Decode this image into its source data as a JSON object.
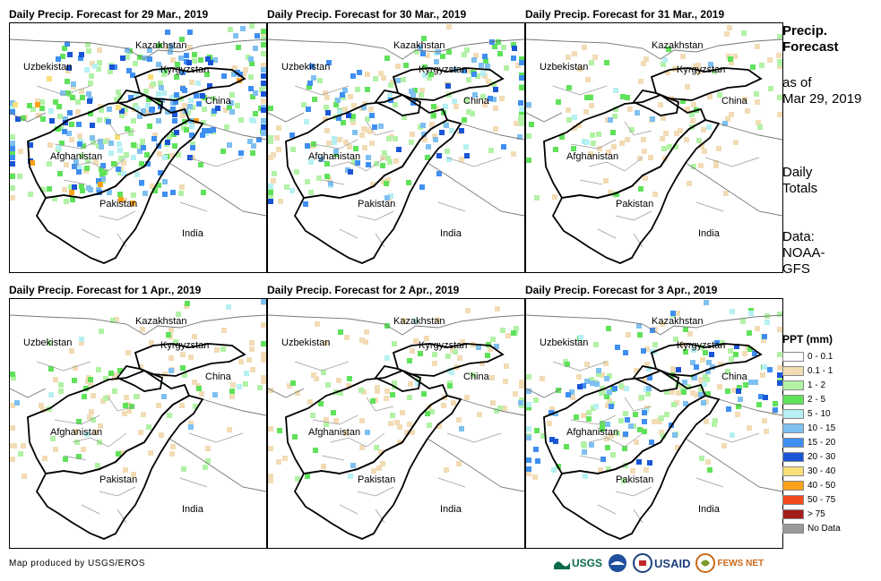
{
  "panels": [
    {
      "title": "Daily Precip. Forecast for 29 Mar., 2019",
      "precip_level": "heavy"
    },
    {
      "title": "Daily Precip. Forecast for 30 Mar., 2019",
      "precip_level": "moderate"
    },
    {
      "title": "Daily Precip. Forecast for 31 Mar., 2019",
      "precip_level": "light"
    },
    {
      "title": "Daily Precip. Forecast for 1 Apr., 2019",
      "precip_level": "light"
    },
    {
      "title": "Daily Precip. Forecast for 2 Apr., 2019",
      "precip_level": "light"
    },
    {
      "title": "Daily Precip. Forecast for 3 Apr., 2019",
      "precip_level": "moderate"
    }
  ],
  "map_labels": {
    "kazakhstan": "Kazakhstan",
    "uzbekistan": "Uzbekistan",
    "kyrgyzstan": "Kyrgyzstan",
    "china": "China",
    "afghanistan": "Afghanistan",
    "pakistan": "Pakistan",
    "india": "India"
  },
  "sidebar": {
    "title_line1": "Precip.",
    "title_line2": "Forecast",
    "asof_line1": "as of",
    "asof_line2": "Mar 29, 2019",
    "daily_line1": "Daily",
    "daily_line2": "Totals",
    "data_line1": "Data:",
    "data_line2": "NOAA-",
    "data_line3": "GFS"
  },
  "legend": {
    "title": "PPT (mm)",
    "items": [
      {
        "label": "0 - 0.1",
        "color": "#ffffff"
      },
      {
        "label": "0.1 - 1",
        "color": "#f2dcb6"
      },
      {
        "label": "1 - 2",
        "color": "#b2f2a6"
      },
      {
        "label": "2 - 5",
        "color": "#5fe25a"
      },
      {
        "label": "5 - 10",
        "color": "#b6f0f2"
      },
      {
        "label": "10 - 15",
        "color": "#7fc0f0"
      },
      {
        "label": "15 - 20",
        "color": "#3f8ff2"
      },
      {
        "label": "20 - 30",
        "color": "#1a55d6"
      },
      {
        "label": "30 - 40",
        "color": "#fbe07a"
      },
      {
        "label": "40 - 50",
        "color": "#fba21c"
      },
      {
        "label": "50 - 75",
        "color": "#f24a1c"
      },
      {
        "label": "> 75",
        "color": "#a41c1c"
      },
      {
        "label": "No Data",
        "color": "#999999"
      }
    ]
  },
  "footer": {
    "credit": "Map produced by USGS/EROS",
    "logo_usgs": "USGS",
    "logo_usaid": "USAID",
    "logo_fewsnet": "FEWS NET"
  }
}
